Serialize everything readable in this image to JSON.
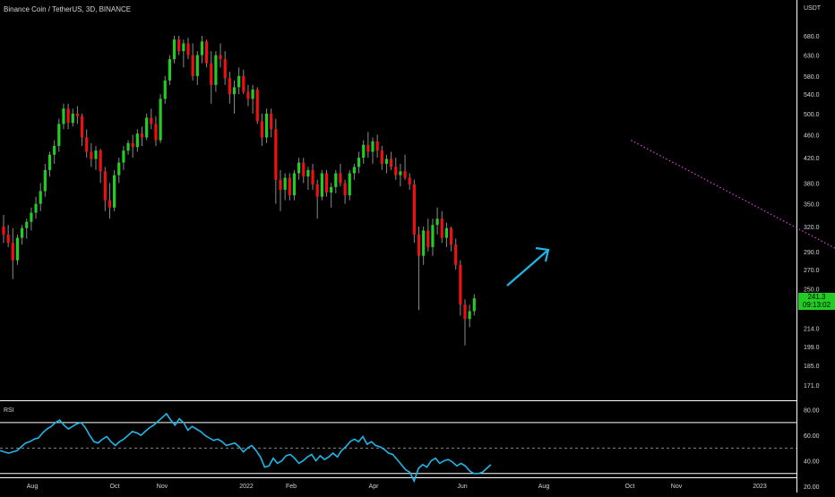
{
  "header": {
    "symbol_title": "Binance Coin / TetherUS, 3D, BINANCE",
    "currency": "USDT"
  },
  "price_tag": {
    "price": "241.3",
    "countdown": "09:13:02",
    "color": "#22cc22"
  },
  "colors": {
    "up": "#22cc22",
    "down": "#ee1111",
    "channel": "#e040e0",
    "arrow": "#1fb6e8",
    "rsi": "#1fb6e8",
    "text": "#d1d4dc",
    "axis_line": "#ffffff"
  },
  "chart_data": [
    {
      "type": "candlestick",
      "title": "Binance Coin / TetherUS, 3D, BINANCE",
      "ylabel": "USDT",
      "y_scale": "log",
      "ylim": [
        160,
        730
      ],
      "y_ticks": [
        "680.0",
        "630.0",
        "580.0",
        "540.0",
        "500.0",
        "460.0",
        "420.0",
        "380.0",
        "350.0",
        "320.0",
        "290.0",
        "270.0",
        "250.0",
        "214.0",
        "199.0",
        "185.0",
        "171.0"
      ],
      "x_ticks": [
        "Aug",
        "Oct",
        "Nov",
        "2022",
        "Feb",
        "Apr",
        "Jun",
        "Aug",
        "Oct",
        "Nov",
        "2023"
      ],
      "candles_ohlc": [
        [
          320,
          335,
          300,
          310
        ],
        [
          310,
          322,
          295,
          300
        ],
        [
          300,
          318,
          260,
          280
        ],
        [
          280,
          310,
          275,
          306
        ],
        [
          306,
          322,
          298,
          318
        ],
        [
          318,
          330,
          305,
          326
        ],
        [
          326,
          345,
          315,
          338
        ],
        [
          338,
          360,
          330,
          350
        ],
        [
          350,
          380,
          340,
          368
        ],
        [
          368,
          410,
          360,
          400
        ],
        [
          400,
          430,
          390,
          425
        ],
        [
          425,
          450,
          410,
          440
        ],
        [
          440,
          490,
          430,
          480
        ],
        [
          480,
          520,
          470,
          510
        ],
        [
          510,
          520,
          470,
          482
        ],
        [
          482,
          510,
          475,
          500
        ],
        [
          500,
          515,
          480,
          495
        ],
        [
          495,
          500,
          440,
          455
        ],
        [
          455,
          470,
          420,
          430
        ],
        [
          430,
          445,
          405,
          418
        ],
        [
          418,
          440,
          400,
          432
        ],
        [
          432,
          435,
          380,
          398
        ],
        [
          398,
          405,
          340,
          355
        ],
        [
          355,
          380,
          330,
          345
        ],
        [
          345,
          400,
          340,
          392
        ],
        [
          392,
          420,
          380,
          412
        ],
        [
          412,
          440,
          400,
          432
        ],
        [
          432,
          450,
          425,
          445
        ],
        [
          445,
          460,
          420,
          438
        ],
        [
          438,
          470,
          430,
          462
        ],
        [
          462,
          475,
          440,
          455
        ],
        [
          455,
          500,
          450,
          492
        ],
        [
          492,
          510,
          470,
          480
        ],
        [
          480,
          495,
          440,
          450
        ],
        [
          450,
          540,
          445,
          530
        ],
        [
          530,
          580,
          520,
          570
        ],
        [
          570,
          630,
          560,
          620
        ],
        [
          620,
          680,
          610,
          670
        ],
        [
          670,
          680,
          630,
          640
        ],
        [
          640,
          670,
          600,
          660
        ],
        [
          660,
          675,
          620,
          630
        ],
        [
          630,
          660,
          570,
          580
        ],
        [
          580,
          640,
          560,
          630
        ],
        [
          630,
          680,
          610,
          665
        ],
        [
          665,
          670,
          600,
          610
        ],
        [
          610,
          640,
          520,
          560
        ],
        [
          560,
          640,
          545,
          630
        ],
        [
          630,
          660,
          600,
          620
        ],
        [
          620,
          640,
          560,
          575
        ],
        [
          575,
          590,
          520,
          540
        ],
        [
          540,
          570,
          500,
          555
        ],
        [
          555,
          600,
          540,
          580
        ],
        [
          580,
          595,
          540,
          545
        ],
        [
          545,
          560,
          515,
          530
        ],
        [
          530,
          560,
          500,
          550
        ],
        [
          550,
          555,
          480,
          485
        ],
        [
          485,
          500,
          440,
          455
        ],
        [
          455,
          510,
          445,
          500
        ],
        [
          500,
          510,
          455,
          470
        ],
        [
          470,
          490,
          350,
          385
        ],
        [
          385,
          400,
          340,
          370
        ],
        [
          370,
          395,
          355,
          388
        ],
        [
          388,
          395,
          355,
          362
        ],
        [
          362,
          400,
          355,
          395
        ],
        [
          395,
          420,
          385,
          412
        ],
        [
          412,
          420,
          380,
          390
        ],
        [
          390,
          405,
          370,
          400
        ],
        [
          400,
          410,
          370,
          378
        ],
        [
          378,
          385,
          330,
          360
        ],
        [
          360,
          400,
          355,
          395
        ],
        [
          395,
          400,
          360,
          366
        ],
        [
          366,
          380,
          345,
          374
        ],
        [
          374,
          400,
          365,
          395
        ],
        [
          395,
          410,
          375,
          380
        ],
        [
          380,
          385,
          350,
          362
        ],
        [
          362,
          400,
          355,
          395
        ],
        [
          395,
          410,
          385,
          405
        ],
        [
          405,
          430,
          395,
          420
        ],
        [
          420,
          450,
          410,
          442
        ],
        [
          442,
          465,
          420,
          430
        ],
        [
          430,
          455,
          410,
          448
        ],
        [
          448,
          460,
          420,
          432
        ],
        [
          432,
          440,
          400,
          410
        ],
        [
          410,
          425,
          395,
          418
        ],
        [
          418,
          430,
          400,
          405
        ],
        [
          405,
          420,
          385,
          392
        ],
        [
          392,
          410,
          375,
          398
        ],
        [
          398,
          425,
          385,
          388
        ],
        [
          388,
          395,
          370,
          378
        ],
        [
          378,
          385,
          300,
          310
        ],
        [
          310,
          320,
          230,
          285
        ],
        [
          285,
          320,
          275,
          315
        ],
        [
          315,
          330,
          290,
          295
        ],
        [
          295,
          330,
          285,
          322
        ],
        [
          322,
          345,
          310,
          330
        ],
        [
          330,
          340,
          300,
          306
        ],
        [
          306,
          325,
          295,
          318
        ],
        [
          318,
          320,
          290,
          298
        ],
        [
          298,
          305,
          270,
          275
        ],
        [
          275,
          280,
          225,
          235
        ],
        [
          235,
          240,
          200,
          222
        ],
        [
          222,
          235,
          215,
          229
        ],
        [
          229,
          245,
          225,
          241
        ]
      ],
      "channel": {
        "upper": [
          [
            225,
            665
          ],
          [
            322,
            230
          ]
        ],
        "lower": [
          [
            167,
            450
          ],
          [
            245,
            212
          ]
        ]
      },
      "projection_arrow": true
    },
    {
      "type": "line",
      "title": "RSI",
      "ylim": [
        20,
        84
      ],
      "y_ticks": [
        "80.00",
        "60.00",
        "40.00",
        "20.00"
      ],
      "bands": [
        30,
        50,
        70
      ],
      "series": [
        {
          "values": [
            48,
            47,
            46,
            47,
            48,
            51,
            54,
            55,
            57,
            58,
            62,
            65,
            67,
            70,
            72,
            68,
            65,
            67,
            69,
            70,
            66,
            60,
            55,
            54,
            57,
            59,
            55,
            52,
            55,
            57,
            60,
            63,
            62,
            60,
            63,
            66,
            68,
            71,
            74,
            77,
            72,
            68,
            73,
            70,
            64,
            67,
            65,
            63,
            60,
            58,
            56,
            57,
            55,
            52,
            53,
            54,
            51,
            47,
            50,
            52,
            48,
            43,
            35,
            36,
            42,
            38,
            40,
            44,
            45,
            42,
            38,
            40,
            43,
            45,
            40,
            44,
            41,
            43,
            46,
            43,
            48,
            51,
            55,
            57,
            55,
            59,
            53,
            55,
            52,
            51,
            49,
            46,
            45,
            41,
            37,
            33,
            31,
            24,
            34,
            37,
            35,
            40,
            42,
            38,
            40,
            41,
            39,
            36,
            38,
            36,
            32,
            30,
            30,
            31,
            34,
            37
          ]
        }
      ]
    }
  ]
}
